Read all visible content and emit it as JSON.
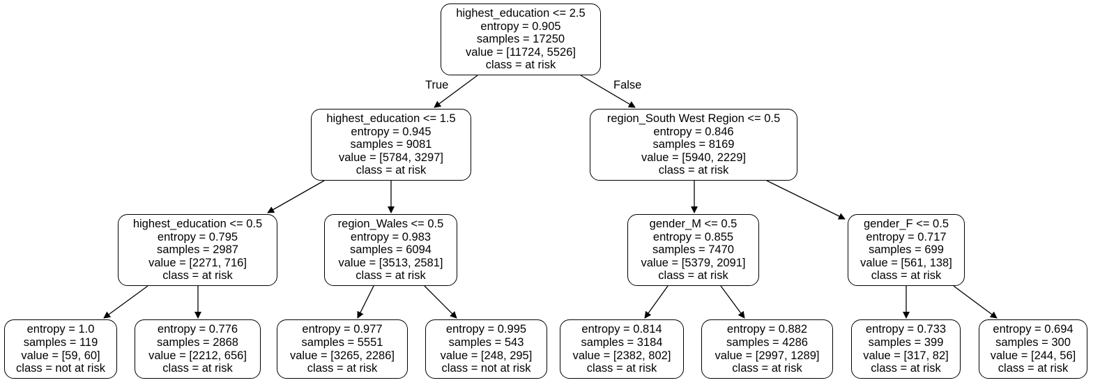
{
  "tree": {
    "nodes": [
      {
        "id": "n0",
        "lines": [
          "highest_education <= 2.5",
          "entropy = 0.905",
          "samples = 17250",
          "value = [11724, 5526]",
          "class = at risk"
        ]
      },
      {
        "id": "n1",
        "lines": [
          "highest_education <= 1.5",
          "entropy = 0.945",
          "samples = 9081",
          "value = [5784, 3297]",
          "class = at risk"
        ]
      },
      {
        "id": "n2",
        "lines": [
          "region_South West Region <= 0.5",
          "entropy = 0.846",
          "samples = 8169",
          "value = [5940, 2229]",
          "class = at risk"
        ]
      },
      {
        "id": "n3",
        "lines": [
          "highest_education <= 0.5",
          "entropy = 0.795",
          "samples = 2987",
          "value = [2271, 716]",
          "class = at risk"
        ]
      },
      {
        "id": "n4",
        "lines": [
          "region_Wales <= 0.5",
          "entropy = 0.983",
          "samples = 6094",
          "value = [3513, 2581]",
          "class = at risk"
        ]
      },
      {
        "id": "n5",
        "lines": [
          "gender_M <= 0.5",
          "entropy = 0.855",
          "samples = 7470",
          "value = [5379, 2091]",
          "class = at risk"
        ]
      },
      {
        "id": "n6",
        "lines": [
          "gender_F <= 0.5",
          "entropy = 0.717",
          "samples = 699",
          "value = [561, 138]",
          "class = at risk"
        ]
      },
      {
        "id": "n7",
        "lines": [
          "entropy = 1.0",
          "samples = 119",
          "value = [59, 60]",
          "class = not at risk"
        ]
      },
      {
        "id": "n8",
        "lines": [
          "entropy = 0.776",
          "samples = 2868",
          "value = [2212, 656]",
          "class = at risk"
        ]
      },
      {
        "id": "n9",
        "lines": [
          "entropy = 0.977",
          "samples = 5551",
          "value = [3265, 2286]",
          "class = at risk"
        ]
      },
      {
        "id": "n10",
        "lines": [
          "entropy = 0.995",
          "samples = 543",
          "value = [248, 295]",
          "class = not at risk"
        ]
      },
      {
        "id": "n11",
        "lines": [
          "entropy = 0.814",
          "samples = 3184",
          "value = [2382, 802]",
          "class = at risk"
        ]
      },
      {
        "id": "n12",
        "lines": [
          "entropy = 0.882",
          "samples = 4286",
          "value = [2997, 1289]",
          "class = at risk"
        ]
      },
      {
        "id": "n13",
        "lines": [
          "entropy = 0.733",
          "samples = 399",
          "value = [317, 82]",
          "class = at risk"
        ]
      },
      {
        "id": "n14",
        "lines": [
          "entropy = 0.694",
          "samples = 300",
          "value = [244, 56]",
          "class = at risk"
        ]
      }
    ],
    "edges": [
      {
        "from": "n0",
        "to": "n1",
        "label": "True"
      },
      {
        "from": "n0",
        "to": "n2",
        "label": "False"
      },
      {
        "from": "n1",
        "to": "n3"
      },
      {
        "from": "n1",
        "to": "n4"
      },
      {
        "from": "n2",
        "to": "n5"
      },
      {
        "from": "n2",
        "to": "n6"
      },
      {
        "from": "n3",
        "to": "n7"
      },
      {
        "from": "n3",
        "to": "n8"
      },
      {
        "from": "n4",
        "to": "n9"
      },
      {
        "from": "n4",
        "to": "n10"
      },
      {
        "from": "n5",
        "to": "n11"
      },
      {
        "from": "n5",
        "to": "n12"
      },
      {
        "from": "n6",
        "to": "n13"
      },
      {
        "from": "n6",
        "to": "n14"
      }
    ]
  }
}
